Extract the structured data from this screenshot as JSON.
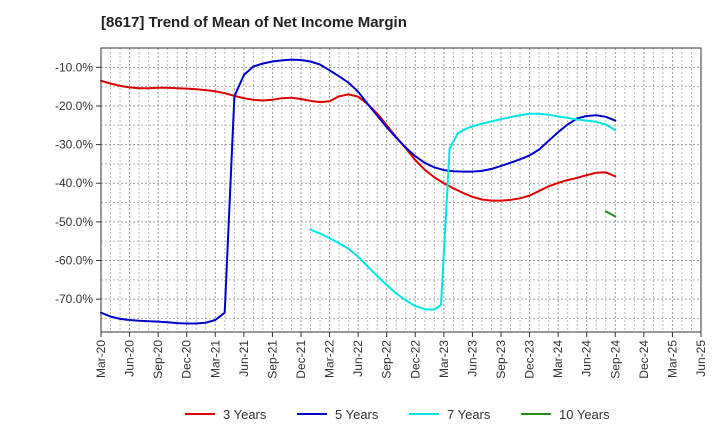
{
  "chart_data": {
    "type": "line",
    "title": "[8617]  Trend of Mean of Net Income Margin",
    "xlabel": "",
    "ylabel": "",
    "x": [
      "Mar-20",
      "Jun-20",
      "Sep-20",
      "Dec-20",
      "Mar-21",
      "Jun-21",
      "Sep-21",
      "Dec-21",
      "Mar-22",
      "Jun-22",
      "Sep-22",
      "Dec-22",
      "Mar-23",
      "Jun-23",
      "Sep-23",
      "Dec-23",
      "Mar-24",
      "Jun-24",
      "Sep-24",
      "Dec-24",
      "Mar-25",
      "Jun-25"
    ],
    "ylim": [
      -78.5,
      -5.0
    ],
    "yticks": [
      -10,
      -20,
      -30,
      -40,
      -50,
      -60,
      -70
    ],
    "ytick_labels": [
      "-10.0%",
      "-20.0%",
      "-30.0%",
      "-40.0%",
      "-50.0%",
      "-60.0%",
      "-70.0%"
    ],
    "grid": true,
    "legend_position": "bottom",
    "series": [
      {
        "name": "3 Years",
        "color": "#dd0000",
        "points": [
          [
            0,
            -13.5
          ],
          [
            0.33,
            -14.2
          ],
          [
            0.67,
            -14.8
          ],
          [
            1,
            -15.2
          ],
          [
            1.33,
            -15.4
          ],
          [
            1.67,
            -15.4
          ],
          [
            2,
            -15.3
          ],
          [
            2.33,
            -15.3
          ],
          [
            2.67,
            -15.4
          ],
          [
            3,
            -15.5
          ],
          [
            3.33,
            -15.7
          ],
          [
            3.67,
            -15.9
          ],
          [
            4,
            -16.2
          ],
          [
            4.33,
            -16.7
          ],
          [
            4.67,
            -17.4
          ],
          [
            5,
            -18.0
          ],
          [
            5.33,
            -18.4
          ],
          [
            5.67,
            -18.6
          ],
          [
            6,
            -18.4
          ],
          [
            6.33,
            -18.0
          ],
          [
            6.67,
            -17.9
          ],
          [
            7,
            -18.2
          ],
          [
            7.33,
            -18.7
          ],
          [
            7.67,
            -19.0
          ],
          [
            8,
            -18.8
          ],
          [
            8.33,
            -17.5
          ],
          [
            8.67,
            -17.0
          ],
          [
            9,
            -17.6
          ],
          [
            9.33,
            -19.5
          ],
          [
            9.67,
            -22.0
          ],
          [
            10,
            -25.0
          ],
          [
            10.33,
            -28.0
          ],
          [
            10.67,
            -31.0
          ],
          [
            11,
            -34.0
          ],
          [
            11.33,
            -36.5
          ],
          [
            11.67,
            -38.5
          ],
          [
            12,
            -40.0
          ],
          [
            12.33,
            -41.3
          ],
          [
            12.67,
            -42.5
          ],
          [
            13,
            -43.5
          ],
          [
            13.33,
            -44.2
          ],
          [
            13.67,
            -44.5
          ],
          [
            14,
            -44.5
          ],
          [
            14.33,
            -44.3
          ],
          [
            14.67,
            -43.9
          ],
          [
            15,
            -43.2
          ],
          [
            15.33,
            -42.0
          ],
          [
            15.67,
            -40.8
          ],
          [
            16,
            -39.9
          ],
          [
            16.33,
            -39.2
          ],
          [
            16.67,
            -38.6
          ],
          [
            17,
            -37.9
          ],
          [
            17.33,
            -37.3
          ],
          [
            17.67,
            -37.2
          ],
          [
            18,
            -38.2
          ]
        ]
      },
      {
        "name": "5 Years",
        "color": "#0000cc",
        "points": [
          [
            0,
            -73.5
          ],
          [
            0.33,
            -74.5
          ],
          [
            0.67,
            -75.1
          ],
          [
            1,
            -75.4
          ],
          [
            1.33,
            -75.6
          ],
          [
            1.67,
            -75.7
          ],
          [
            2,
            -75.8
          ],
          [
            2.33,
            -76.0
          ],
          [
            2.67,
            -76.2
          ],
          [
            3,
            -76.3
          ],
          [
            3.33,
            -76.3
          ],
          [
            3.67,
            -76.1
          ],
          [
            4,
            -75.4
          ],
          [
            4.33,
            -73.5
          ],
          [
            4.67,
            -17.5
          ],
          [
            5,
            -12.0
          ],
          [
            5.33,
            -9.8
          ],
          [
            5.67,
            -9.0
          ],
          [
            6,
            -8.5
          ],
          [
            6.33,
            -8.2
          ],
          [
            6.67,
            -8.0
          ],
          [
            7,
            -8.1
          ],
          [
            7.33,
            -8.5
          ],
          [
            7.67,
            -9.3
          ],
          [
            8,
            -10.8
          ],
          [
            8.33,
            -12.3
          ],
          [
            8.67,
            -14.0
          ],
          [
            9,
            -16.3
          ],
          [
            9.33,
            -19.5
          ],
          [
            9.67,
            -22.5
          ],
          [
            10,
            -25.5
          ],
          [
            10.33,
            -28.2
          ],
          [
            10.67,
            -30.8
          ],
          [
            11,
            -33.0
          ],
          [
            11.33,
            -34.7
          ],
          [
            11.67,
            -35.9
          ],
          [
            12,
            -36.6
          ],
          [
            12.33,
            -36.9
          ],
          [
            12.67,
            -37.0
          ],
          [
            13,
            -37.0
          ],
          [
            13.33,
            -36.8
          ],
          [
            13.67,
            -36.3
          ],
          [
            14,
            -35.5
          ],
          [
            14.33,
            -34.7
          ],
          [
            14.67,
            -33.8
          ],
          [
            15,
            -32.8
          ],
          [
            15.33,
            -31.3
          ],
          [
            15.67,
            -29.0
          ],
          [
            16,
            -26.8
          ],
          [
            16.33,
            -24.8
          ],
          [
            16.67,
            -23.2
          ],
          [
            17,
            -22.6
          ],
          [
            17.33,
            -22.4
          ],
          [
            17.67,
            -22.8
          ],
          [
            18,
            -23.8
          ]
        ]
      },
      {
        "name": "7 Years",
        "color": "#00e6e6",
        "points": [
          [
            7.33,
            -52.0
          ],
          [
            7.67,
            -53.0
          ],
          [
            8,
            -54.2
          ],
          [
            8.33,
            -55.5
          ],
          [
            8.67,
            -57.0
          ],
          [
            9,
            -59.0
          ],
          [
            9.33,
            -61.5
          ],
          [
            9.67,
            -64.0
          ],
          [
            10,
            -66.3
          ],
          [
            10.33,
            -68.5
          ],
          [
            10.67,
            -70.3
          ],
          [
            11,
            -71.8
          ],
          [
            11.33,
            -72.6
          ],
          [
            11.67,
            -72.7
          ],
          [
            11.9,
            -71.5
          ],
          [
            12.2,
            -31.0
          ],
          [
            12.5,
            -27.0
          ],
          [
            12.8,
            -25.8
          ],
          [
            13,
            -25.3
          ],
          [
            13.33,
            -24.6
          ],
          [
            13.67,
            -24.0
          ],
          [
            14,
            -23.4
          ],
          [
            14.33,
            -22.9
          ],
          [
            14.67,
            -22.4
          ],
          [
            15,
            -22.0
          ],
          [
            15.33,
            -22.0
          ],
          [
            15.67,
            -22.3
          ],
          [
            16,
            -22.7
          ],
          [
            16.33,
            -23.1
          ],
          [
            16.67,
            -23.5
          ],
          [
            17,
            -23.8
          ],
          [
            17.33,
            -24.1
          ],
          [
            17.67,
            -24.8
          ],
          [
            18,
            -26.3
          ]
        ]
      },
      {
        "name": "10 Years",
        "color": "#228b22",
        "points": [
          [
            17.67,
            -47.3
          ],
          [
            18,
            -48.6
          ]
        ]
      }
    ]
  }
}
